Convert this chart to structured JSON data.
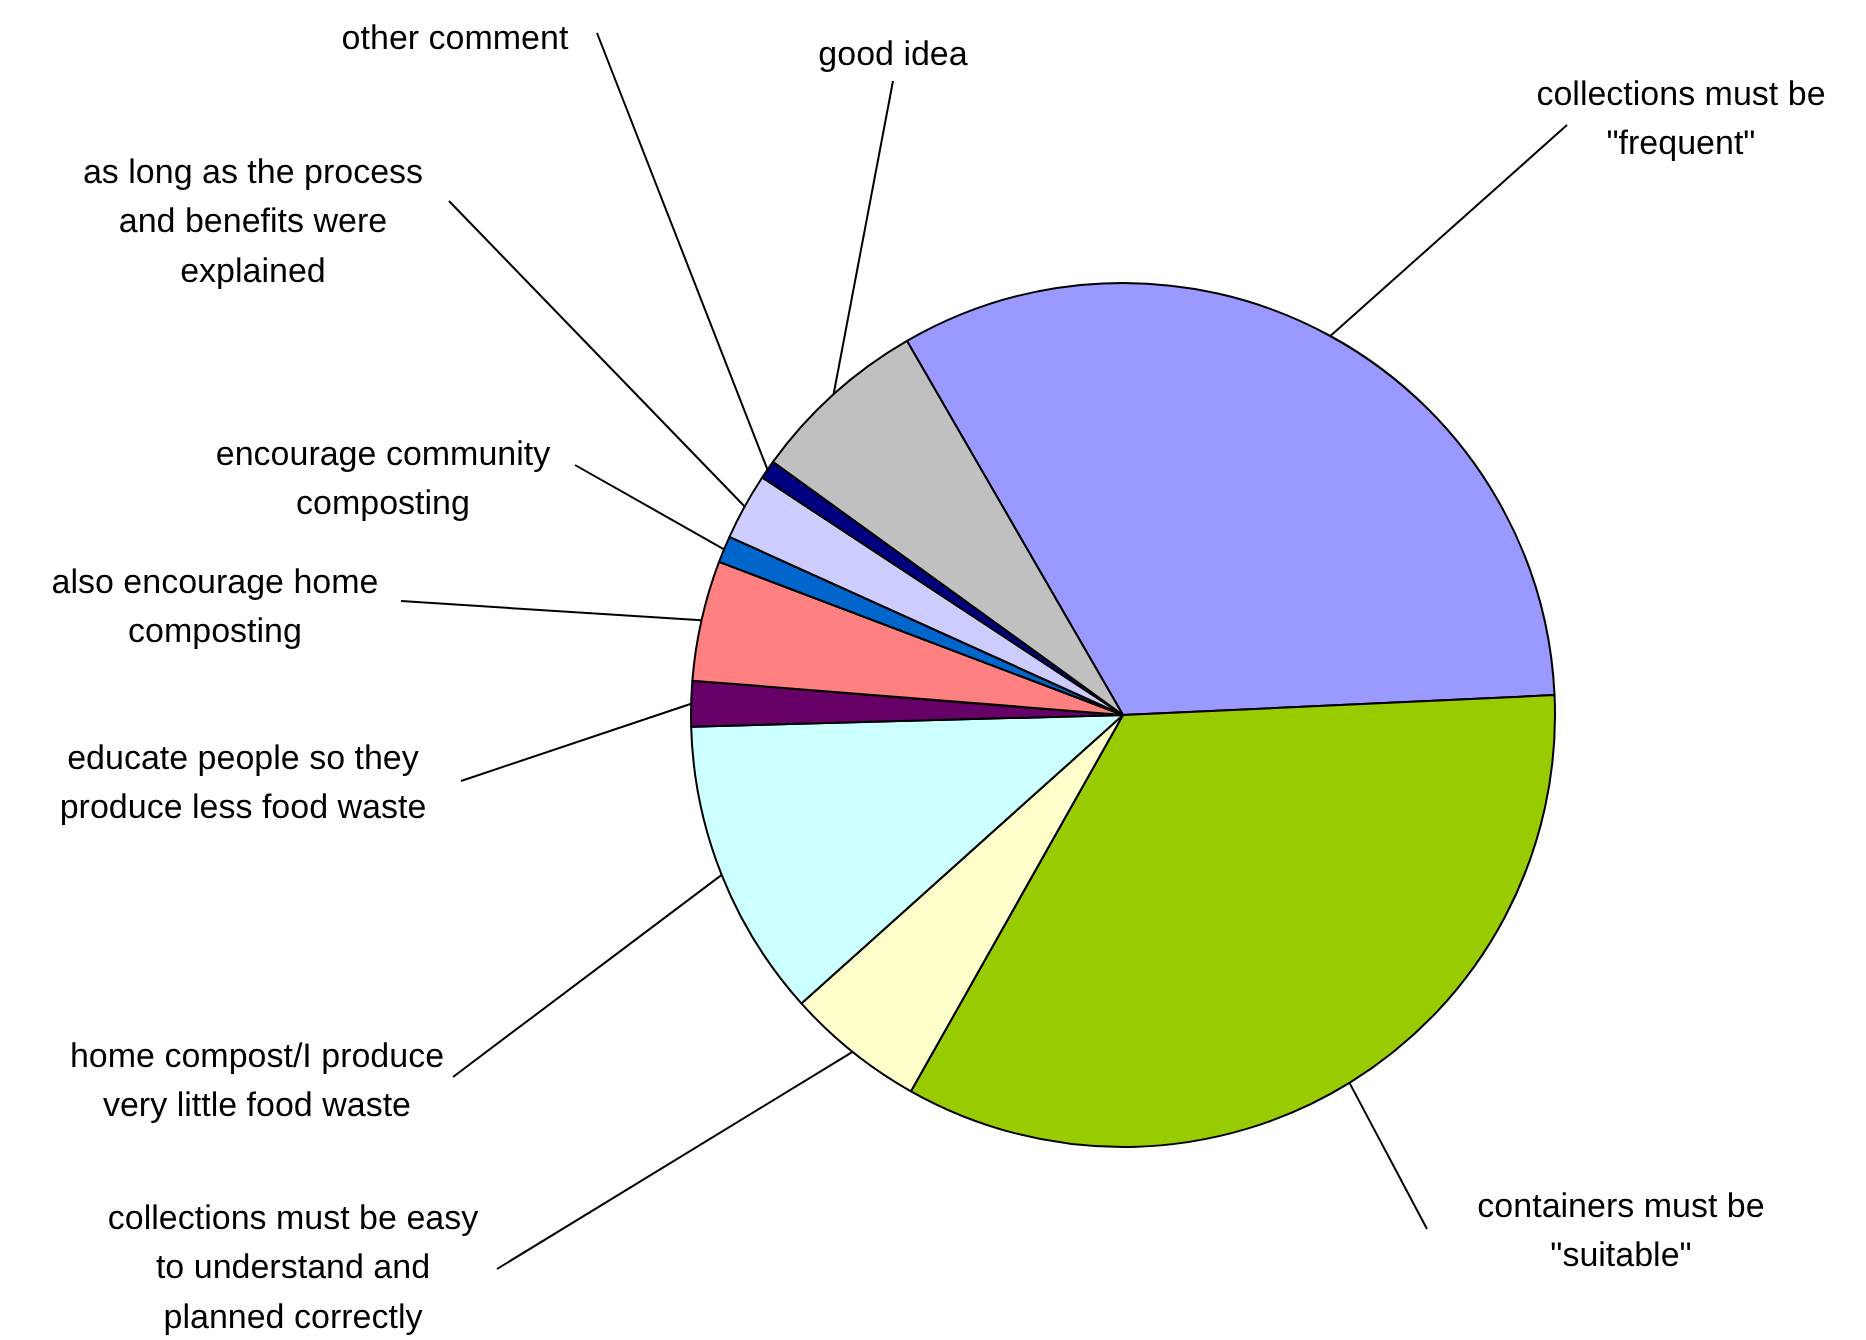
{
  "chart_data": {
    "type": "pie",
    "categories": [
      "collections must be\n\"frequent\"",
      "containers must be\n\"suitable\"",
      "collections must be easy\nto understand and\nplanned correctly",
      "home compost/I produce\nvery little food waste",
      "educate people so they\nproduce less food waste",
      "also encourage home\ncomposting",
      "encourage community\ncomposting",
      "as long as the process\nand benefits were\nexplained",
      "other comment",
      "good idea"
    ],
    "values": [
      32.6,
      33.9,
      5.2,
      11.2,
      1.7,
      4.5,
      1.0,
      2.5,
      0.7,
      6.7
    ],
    "colors": [
      "#9999ff",
      "#99cc00",
      "#ffffcc",
      "#ccffff",
      "#660066",
      "#ff8080",
      "#0066cc",
      "#ccccff",
      "#000080",
      "#c0c0c0"
    ]
  }
}
